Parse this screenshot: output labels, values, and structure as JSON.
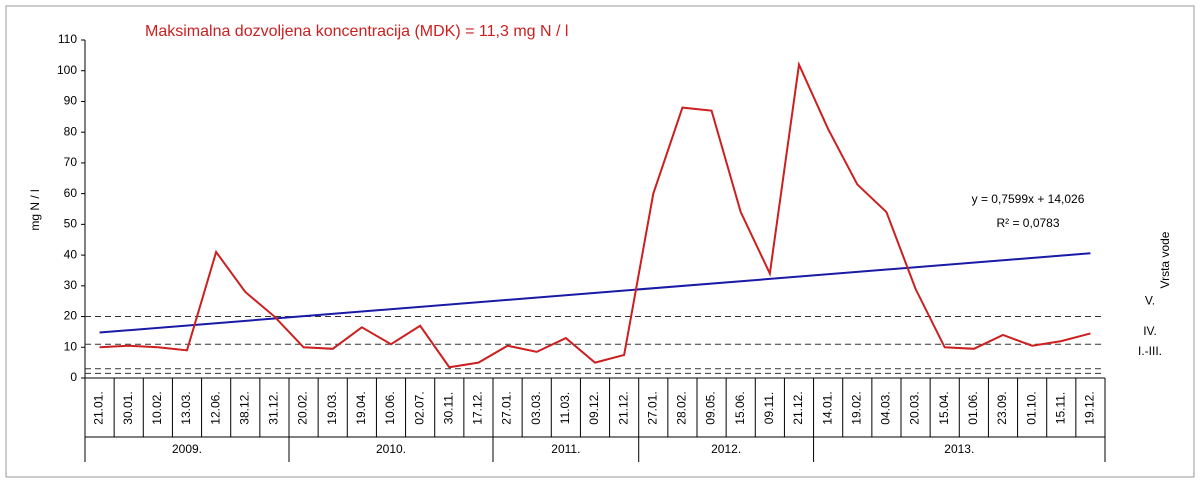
{
  "chart_data": {
    "type": "line",
    "title": "Maksimalna dozvoljena koncentracija (MDK) = 11,3 mg N / l",
    "y_label": "mg N / l",
    "right_label": "Vrsta vode",
    "groups": [
      {
        "label": "2009.",
        "categories": [
          "21.01.",
          "30.01.",
          "10.02.",
          "13.03.",
          "12.06.",
          "38.12.",
          "31.12."
        ]
      },
      {
        "label": "2010.",
        "categories": [
          "20.02.",
          "19.03.",
          "19.04.",
          "10.06.",
          "02.07.",
          "30.11.",
          "17.12."
        ]
      },
      {
        "label": "2011.",
        "categories": [
          "27.01.",
          "03.03.",
          "11.03.",
          "09.12.",
          "21.12."
        ]
      },
      {
        "label": "2012.",
        "categories": [
          "27.01.",
          "28.02.",
          "09.05.",
          "15.06.",
          "09.11.",
          "21.12."
        ]
      },
      {
        "label": "2013.",
        "categories": [
          "14.01.",
          "19.02.",
          "04.03.",
          "20.03.",
          "15.04.",
          "01.06.",
          "23.09.",
          "01.10.",
          "15.11.",
          "19.12."
        ]
      }
    ],
    "series": [
      {
        "color": "#cc1f1f",
        "values": [
          10,
          10.5,
          10,
          9,
          41,
          28,
          20,
          10,
          9.5,
          16.5,
          11,
          17,
          3.5,
          5,
          10.5,
          8.5,
          13,
          5,
          7.5,
          60,
          88,
          87,
          54,
          34,
          102,
          81,
          63,
          54,
          29,
          10,
          9.5,
          14,
          10.5,
          12,
          14.5
        ]
      }
    ],
    "trend": {
      "color": "#1a1aa8",
      "values": [
        14.8,
        40.6
      ],
      "equation": "y = 0,7599x + 14,026",
      "r2": "R² = 0,0783"
    },
    "reference_lines": [
      20,
      11,
      3,
      1.5
    ],
    "class_labels": [
      {
        "label": "V.",
        "value": 25
      },
      {
        "label": "IV.",
        "value": 15
      },
      {
        "label": "I.-III.",
        "value": 8.5
      }
    ],
    "ylim": [
      0,
      110
    ],
    "yticks": [
      0,
      10,
      20,
      30,
      40,
      50,
      60,
      70,
      80,
      90,
      100,
      110
    ]
  }
}
